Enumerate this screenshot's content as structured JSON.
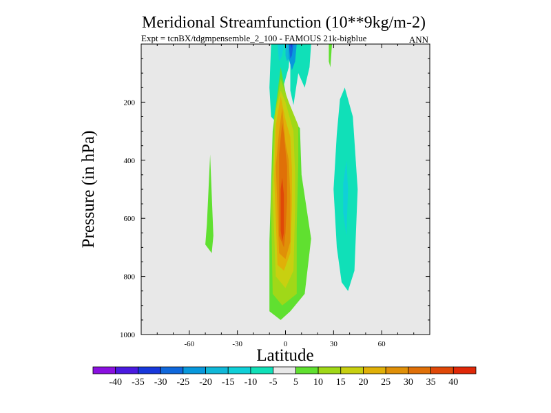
{
  "chart_data": {
    "type": "heatmap",
    "title": "Meridional Streamfunction (10**9kg/m-2)",
    "subtitle": "Expt = tcnBX/tdgmpensemble_2_100 - FAMOUS 21k-bigblue",
    "season": "ANN",
    "xlabel": "Latitude",
    "ylabel": "Pressure (in hPa)",
    "xlim": [
      -90,
      90
    ],
    "ylim": [
      1000,
      0
    ],
    "x_ticks": [
      -60,
      -30,
      0,
      30,
      60
    ],
    "y_ticks": [
      200,
      400,
      600,
      800,
      1000
    ],
    "background": "#e8e8e8",
    "levels": [
      "-40",
      "-35",
      "-30",
      "-25",
      "-20",
      "-15",
      "-10",
      "-5",
      "5",
      "10",
      "15",
      "20",
      "25",
      "30",
      "35",
      "40"
    ],
    "colors": [
      "#8a10e0",
      "#4a1ae0",
      "#1838dc",
      "#1068dc",
      "#0898dc",
      "#10b8d8",
      "#10d0d8",
      "#10e0b8",
      "#e8e8e8",
      "#60e030",
      "#a0d818",
      "#c8d010",
      "#e0b008",
      "#e09008",
      "#e07008",
      "#e04808",
      "#e02808"
    ],
    "regions": [
      {
        "name": "sh-ferrel-positive",
        "color_index": 9,
        "points": [
          [
            -49,
            620
          ],
          [
            -47,
            380
          ],
          [
            -45,
            660
          ],
          [
            -46,
            720
          ],
          [
            -50,
            690
          ]
        ]
      },
      {
        "name": "north-cell-negative-1",
        "color_index": 7,
        "points": [
          [
            -9,
            0
          ],
          [
            3,
            0
          ],
          [
            2,
            80
          ],
          [
            -2,
            160
          ],
          [
            -4,
            280
          ],
          [
            -9,
            250
          ],
          [
            -10,
            150
          ]
        ]
      },
      {
        "name": "north-cell-negative-2",
        "color_index": 6,
        "points": [
          [
            -5,
            0
          ],
          [
            -1,
            0
          ],
          [
            -2,
            40
          ],
          [
            -4,
            60
          ]
        ]
      },
      {
        "name": "north-cell-negative-3",
        "color_index": 5,
        "points": [
          [
            0,
            0
          ],
          [
            4,
            0
          ],
          [
            3,
            40
          ],
          [
            1,
            60
          ],
          [
            0,
            40
          ]
        ]
      },
      {
        "name": "north-cell-negative-4",
        "color_index": 7,
        "points": [
          [
            3,
            0
          ],
          [
            16,
            0
          ],
          [
            15,
            80
          ],
          [
            12,
            150
          ],
          [
            8,
            100
          ],
          [
            5,
            210
          ],
          [
            3,
            160
          ]
        ]
      },
      {
        "name": "north-cell-negative-5",
        "color_index": 4,
        "points": [
          [
            2,
            0
          ],
          [
            7,
            0
          ],
          [
            6,
            60
          ],
          [
            4,
            90
          ],
          [
            2,
            50
          ]
        ]
      },
      {
        "name": "north-cell-negative-6",
        "color_index": 3,
        "points": [
          [
            2,
            0
          ],
          [
            5,
            0
          ],
          [
            4,
            40
          ],
          [
            3,
            50
          ]
        ]
      },
      {
        "name": "north-cell-negative-7",
        "color_index": 2,
        "points": [
          [
            3,
            0
          ],
          [
            4,
            0
          ],
          [
            4,
            15
          ]
        ]
      },
      {
        "name": "nh-small-positive",
        "color_index": 9,
        "points": [
          [
            27,
            0
          ],
          [
            29,
            0
          ],
          [
            28,
            80
          ],
          [
            27,
            60
          ]
        ]
      },
      {
        "name": "hadley-5",
        "color_index": 9,
        "points": [
          [
            -10,
            680
          ],
          [
            -8,
            300
          ],
          [
            -3,
            80
          ],
          [
            3,
            250
          ],
          [
            9,
            290
          ],
          [
            10,
            450
          ],
          [
            16,
            670
          ],
          [
            12,
            860
          ],
          [
            3,
            920
          ],
          [
            -3,
            950
          ],
          [
            -10,
            920
          ]
        ]
      },
      {
        "name": "hadley-10",
        "color_index": 10,
        "points": [
          [
            -9,
            560
          ],
          [
            -7,
            250
          ],
          [
            -3,
            120
          ],
          [
            2,
            200
          ],
          [
            8,
            280
          ],
          [
            8,
            400
          ],
          [
            7,
            640
          ],
          [
            7,
            860
          ],
          [
            -2,
            900
          ],
          [
            -8,
            860
          ]
        ]
      },
      {
        "name": "hadley-15",
        "color_index": 11,
        "points": [
          [
            -8,
            520
          ],
          [
            -6,
            230
          ],
          [
            -3,
            160
          ],
          [
            0,
            200
          ],
          [
            5,
            300
          ],
          [
            6,
            450
          ],
          [
            6,
            560
          ],
          [
            5,
            780
          ],
          [
            0,
            840
          ],
          [
            -6,
            800
          ]
        ]
      },
      {
        "name": "hadley-20",
        "color_index": 12,
        "points": [
          [
            -7,
            460
          ],
          [
            -6,
            280
          ],
          [
            -3,
            180
          ],
          [
            0,
            260
          ],
          [
            3,
            320
          ],
          [
            4,
            430
          ],
          [
            4,
            560
          ],
          [
            3,
            720
          ],
          [
            -1,
            780
          ],
          [
            -5,
            760
          ]
        ]
      },
      {
        "name": "hadley-25",
        "color_index": 13,
        "points": [
          [
            -6,
            420
          ],
          [
            -4,
            300
          ],
          [
            -2,
            220
          ],
          [
            0,
            340
          ],
          [
            2,
            400
          ],
          [
            3,
            520
          ],
          [
            3,
            680
          ],
          [
            0,
            740
          ],
          [
            -4,
            720
          ]
        ]
      },
      {
        "name": "hadley-30",
        "color_index": 14,
        "points": [
          [
            -4,
            380
          ],
          [
            -2,
            270
          ],
          [
            -1,
            310
          ],
          [
            1,
            420
          ],
          [
            1,
            540
          ],
          [
            0,
            650
          ],
          [
            -1,
            700
          ],
          [
            -4,
            660
          ]
        ]
      },
      {
        "name": "hadley-35",
        "color_index": 15,
        "points": [
          [
            -3,
            500
          ],
          [
            -2,
            460
          ],
          [
            -1,
            520
          ],
          [
            -1,
            650
          ],
          [
            -2,
            680
          ],
          [
            -3,
            640
          ]
        ]
      },
      {
        "name": "nh-ferrel-negative",
        "color_index": 7,
        "points": [
          [
            30,
            500
          ],
          [
            32,
            310
          ],
          [
            34,
            190
          ],
          [
            37,
            150
          ],
          [
            42,
            250
          ],
          [
            45,
            500
          ],
          [
            43,
            780
          ],
          [
            39,
            850
          ],
          [
            35,
            820
          ],
          [
            32,
            700
          ]
        ]
      },
      {
        "name": "nh-ferrel-negative-inner",
        "color_index": 6,
        "points": [
          [
            36,
            480
          ],
          [
            38,
            400
          ],
          [
            39,
            500
          ],
          [
            38,
            660
          ],
          [
            36,
            580
          ]
        ]
      }
    ]
  }
}
